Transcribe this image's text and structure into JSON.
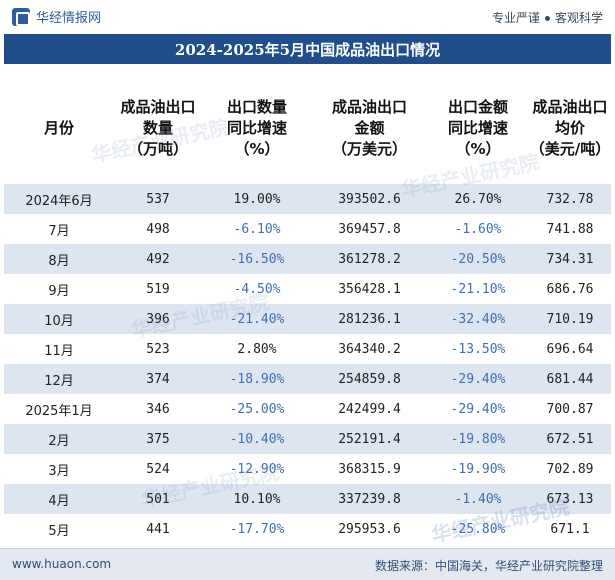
{
  "header": {
    "brand": "华经情报网",
    "tagline_left": "专业严谨",
    "tagline_right": "客观科学"
  },
  "title": "2024-2025年5月中国成品油出口情况",
  "chart_data": {
    "type": "table",
    "title": "2024-2025年5月中国成品油出口情况",
    "columns": [
      "月份",
      "成品油出口\n数量\n（万吨）",
      "出口数量\n同比增速\n（%）",
      "成品油出口\n金额\n（万美元）",
      "出口金额\n同比增速\n（%）",
      "成品油出口\n均价\n（美元/吨）"
    ],
    "rows": [
      [
        "2024年6月",
        "537",
        "19.00%",
        "393502.6",
        "26.70%",
        "732.78"
      ],
      [
        "7月",
        "498",
        "-6.10%",
        "369457.8",
        "-1.60%",
        "741.88"
      ],
      [
        "8月",
        "492",
        "-16.50%",
        "361278.2",
        "-20.50%",
        "734.31"
      ],
      [
        "9月",
        "519",
        "-4.50%",
        "356428.1",
        "-21.10%",
        "686.76"
      ],
      [
        "10月",
        "396",
        "-21.40%",
        "281236.1",
        "-32.40%",
        "710.19"
      ],
      [
        "11月",
        "523",
        "2.80%",
        "364340.2",
        "-13.50%",
        "696.64"
      ],
      [
        "12月",
        "374",
        "-18.90%",
        "254859.8",
        "-29.40%",
        "681.44"
      ],
      [
        "2025年1月",
        "346",
        "-25.00%",
        "242499.4",
        "-29.40%",
        "700.87"
      ],
      [
        "2月",
        "375",
        "-10.40%",
        "252191.4",
        "-19.80%",
        "672.51"
      ],
      [
        "3月",
        "524",
        "-12.90%",
        "368315.9",
        "-19.90%",
        "702.89"
      ],
      [
        "4月",
        "501",
        "10.10%",
        "337239.8",
        "-1.40%",
        "673.13"
      ],
      [
        "5月",
        "441",
        "-17.70%",
        "295953.6",
        "-25.80%",
        "671.1"
      ]
    ]
  },
  "watermark": "华经产业研究院",
  "footer": {
    "site": "www.huaon.com",
    "source": "数据来源：中国海关，华经产业研究院整理"
  },
  "colors": {
    "title_bg": "#1f4e8a",
    "row_shade": "#dde5f1",
    "negative_text": "#3f6fae",
    "footer_bg": "#e4e9f1"
  }
}
